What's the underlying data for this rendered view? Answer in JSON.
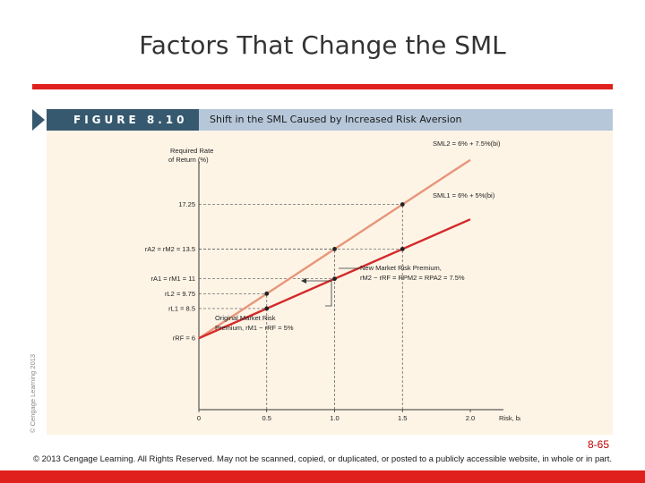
{
  "slide": {
    "title": "Factors That Change the SML",
    "page_number": "8-65",
    "footer": "© 2013 Cengage Learning. All Rights Reserved. May not be scanned, copied, or duplicated, or posted to a publicly accessible website, in whole or in part.",
    "vertical_copyright": "© Cengage Learning 2013",
    "accent_color": "#e0201c"
  },
  "figure": {
    "label": "FIGURE 8.10",
    "caption": "Shift in the SML Caused by Increased Risk Aversion",
    "header_color": "#b6c7d9",
    "label_color": "#36596f"
  },
  "chart_data": {
    "type": "line",
    "xlabel": "Risk, bᵢ",
    "ylabel": "Required Rate of Return (%)",
    "x_ticks": [
      "0",
      "0.5",
      "1.0",
      "1.5",
      "2.0"
    ],
    "x_tick_values": [
      0,
      0.5,
      1.0,
      1.5,
      2.0
    ],
    "xlim": [
      0,
      2.3
    ],
    "ylim": [
      0,
      21
    ],
    "y_tick_labels": [
      {
        "value": 17.25,
        "label": "17.25"
      },
      {
        "value": 13.5,
        "label": "rA2 = rM2 = 13.5"
      },
      {
        "value": 11,
        "label": "rA1 = rM1 = 11"
      },
      {
        "value": 9.75,
        "label": "rL2 = 9.75"
      },
      {
        "value": 8.5,
        "label": "rL1 = 8.5"
      },
      {
        "value": 6,
        "label": "rRF = 6"
      }
    ],
    "series": [
      {
        "name": "SML2 = 6% + 7.5%(bi)",
        "intercept": 6,
        "slope": 7.5,
        "x_end": 2.0,
        "color": "#e8957a"
      },
      {
        "name": "SML1 = 6% + 5%(bi)",
        "intercept": 6,
        "slope": 5,
        "x_end": 2.0,
        "color": "#d42a2a"
      }
    ],
    "points": [
      {
        "x": 0.5,
        "y": 8.5
      },
      {
        "x": 0.5,
        "y": 9.75
      },
      {
        "x": 1.0,
        "y": 11
      },
      {
        "x": 1.0,
        "y": 13.5
      },
      {
        "x": 1.5,
        "y": 13.5
      },
      {
        "x": 1.5,
        "y": 17.25
      }
    ],
    "annotations": {
      "new_premium": [
        "New Market Risk Premium,",
        "rM2 − rRF = RPM2 = RPA2 = 7.5%"
      ],
      "original_premium": [
        "Original Market Risk",
        "Premium, rM1 − rRF = 5%"
      ]
    }
  }
}
